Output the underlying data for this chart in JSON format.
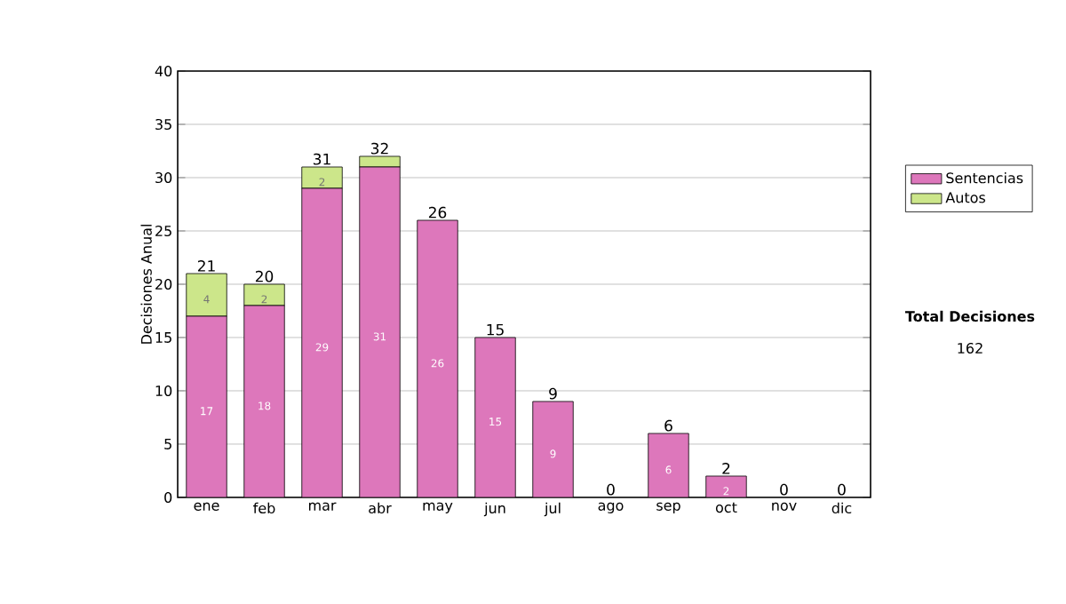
{
  "chart_data": {
    "type": "bar",
    "stacked": true,
    "categories": [
      "ene",
      "feb",
      "mar",
      "abr",
      "may",
      "jun",
      "jul",
      "ago",
      "sep",
      "oct",
      "nov",
      "dic"
    ],
    "ylabel": "Decisiones Anual",
    "series": [
      {
        "name": "Sentencias",
        "color": "#dd77bb",
        "values": [
          17,
          18,
          29,
          31,
          26,
          15,
          9,
          0,
          6,
          2,
          0,
          0
        ],
        "value_labels": [
          "17",
          "18",
          "29",
          "31",
          "26",
          "15",
          "9",
          null,
          "6",
          "2",
          null,
          null
        ]
      },
      {
        "name": "Autos",
        "color": "#cce68a",
        "values": [
          4,
          2,
          2,
          1,
          0,
          0,
          0,
          0,
          0,
          0,
          0,
          0
        ],
        "value_labels": [
          "4",
          "2",
          "2",
          null,
          null,
          null,
          null,
          null,
          null,
          null,
          null,
          null
        ]
      }
    ],
    "totals": [
      "21",
      "20",
      "31",
      "32",
      "26",
      "15",
      "9",
      "0",
      "6",
      "2",
      "0",
      "0"
    ],
    "ylim": [
      0,
      40
    ],
    "yticks": [
      0,
      5,
      10,
      15,
      20,
      25,
      30,
      35,
      40
    ],
    "grid": "y",
    "legend": "right",
    "annotations": [
      "Total Decisiones",
      "162"
    ]
  }
}
